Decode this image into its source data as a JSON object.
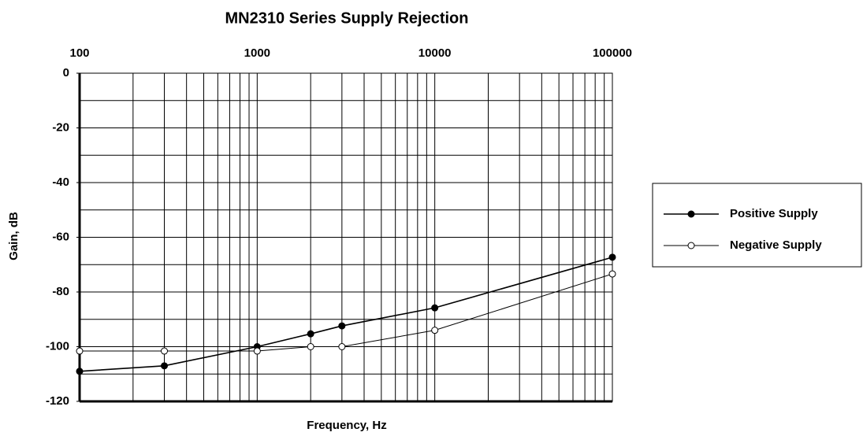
{
  "chart_data": {
    "type": "line",
    "title": "MN2310 Series Supply Rejection",
    "xlabel": "Frequency, Hz",
    "ylabel": "Gain, dB",
    "xscale": "log",
    "xlim": [
      100,
      100000
    ],
    "xticks": [
      100,
      1000,
      10000,
      100000
    ],
    "ylim": [
      -120,
      0
    ],
    "yticks": [
      0,
      -20,
      -40,
      -60,
      -80,
      -100,
      -120
    ],
    "grid": true,
    "legend": "right",
    "series": [
      {
        "name": "Positive Supply",
        "color": "#000000",
        "marker": "filled",
        "x": [
          100,
          300,
          1000,
          2000,
          3000,
          10000,
          100000
        ],
        "values": [
          -109,
          -107,
          -100,
          -95.3,
          -92.4,
          -85.8,
          -67.3
        ]
      },
      {
        "name": "Negative Supply",
        "color": "#000000",
        "marker": "open",
        "x": [
          100,
          300,
          1000,
          2000,
          3000,
          10000,
          100000
        ],
        "values": [
          -101.6,
          -101.6,
          -101.6,
          -100,
          -100,
          -94,
          -73.4
        ]
      }
    ]
  }
}
